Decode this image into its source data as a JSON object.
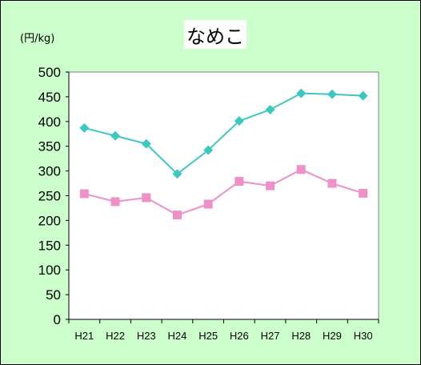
{
  "chart_data": {
    "type": "line",
    "title": "なめこ",
    "ylabel": "(円/kg)",
    "xlabel": "",
    "categories": [
      "H21",
      "H22",
      "H23",
      "H24",
      "H25",
      "H26",
      "H27",
      "H28",
      "H29",
      "H30"
    ],
    "ylim": [
      0,
      500
    ],
    "yticks": [
      "0",
      "50",
      "100",
      "150",
      "200",
      "250",
      "300",
      "350",
      "400",
      "450",
      "500"
    ],
    "grid": false,
    "legend": "none",
    "series": [
      {
        "color": "#3cc8c0",
        "marker": "diamond",
        "values": [
          387,
          371,
          355,
          294,
          342,
          401,
          424,
          457,
          455,
          452
        ]
      },
      {
        "color": "#f090c8",
        "marker": "square",
        "values": [
          254,
          238,
          246,
          211,
          233,
          279,
          270,
          303,
          275,
          255
        ]
      }
    ]
  }
}
